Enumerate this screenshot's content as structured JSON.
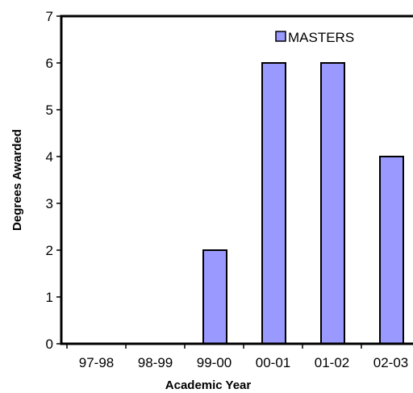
{
  "chart_data": {
    "type": "bar",
    "categories": [
      "97-98",
      "98-99",
      "99-00",
      "00-01",
      "01-02",
      "02-03"
    ],
    "series": [
      {
        "name": "MASTERS",
        "values": [
          0,
          0,
          2,
          6,
          6,
          4
        ]
      }
    ],
    "xlabel": "Academic Year",
    "ylabel": "Degrees Awarded",
    "ylim": [
      0,
      7
    ],
    "yticks": [
      0,
      1,
      2,
      3,
      4,
      5,
      6,
      7
    ],
    "grid": false,
    "legend": "top-right",
    "colors": {
      "bar_fill": "#9999FF",
      "bar_stroke": "#000000"
    }
  }
}
